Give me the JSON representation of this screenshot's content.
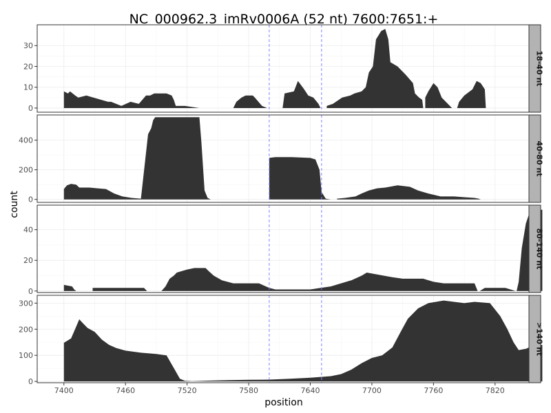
{
  "chart_data": {
    "type": "area",
    "title": "NC_000962.3_imRv0006A (52 nt) 7600:7651:+",
    "xlabel": "position",
    "ylabel": "count",
    "xlim": [
      7374,
      7853
    ],
    "x_ticks": [
      7400,
      7460,
      7520,
      7580,
      7640,
      7700,
      7760,
      7820
    ],
    "vlines": [
      7600,
      7651
    ],
    "colors": {
      "fill": "#333333",
      "vline": "#8080ff",
      "strip_bg": "#b3b3b3",
      "grid": "#ebebeb"
    },
    "panels": [
      {
        "label": "18-40 nt",
        "ylim": [
          -2,
          40
        ],
        "y_ticks": [
          0,
          10,
          20,
          30
        ],
        "segments": [
          [
            [
              7400,
              8
            ],
            [
              7404,
              7
            ],
            [
              7406,
              8
            ],
            [
              7411,
              6
            ],
            [
              7414,
              5
            ],
            [
              7422,
              6
            ],
            [
              7443,
              3
            ],
            [
              7446,
              3
            ],
            [
              7456,
              1
            ],
            [
              7465,
              3
            ],
            [
              7473,
              2
            ],
            [
              7480,
              6
            ],
            [
              7484,
              6
            ],
            [
              7488,
              7
            ],
            [
              7500,
              7
            ],
            [
              7505,
              6
            ],
            [
              7507,
              4
            ],
            [
              7509,
              1
            ],
            [
              7518,
              1
            ],
            [
              7532,
              0
            ],
            [
              7533,
              0
            ]
          ],
          [
            [
              7565,
              0
            ],
            [
              7568,
              3
            ],
            [
              7573,
              5
            ],
            [
              7577,
              6
            ],
            [
              7584,
              6
            ],
            [
              7586,
              5
            ],
            [
              7593,
              1
            ],
            [
              7598,
              0
            ]
          ],
          [
            [
              7613,
              0
            ],
            [
              7615,
              7
            ],
            [
              7624,
              8
            ],
            [
              7628,
              13
            ],
            [
              7634,
              9
            ],
            [
              7638,
              6
            ],
            [
              7643,
              5
            ],
            [
              7648,
              2
            ],
            [
              7650,
              0
            ]
          ],
          [
            [
              7656,
              1
            ],
            [
              7662,
              2
            ],
            [
              7671,
              5
            ],
            [
              7679,
              6
            ],
            [
              7683,
              7
            ],
            [
              7690,
              8
            ],
            [
              7694,
              10
            ],
            [
              7697,
              17
            ],
            [
              7701,
              20
            ],
            [
              7704,
              33
            ],
            [
              7709,
              37
            ],
            [
              7713,
              38
            ],
            [
              7716,
              33
            ],
            [
              7718,
              22
            ],
            [
              7725,
              20
            ],
            [
              7733,
              16
            ],
            [
              7740,
              12
            ],
            [
              7742,
              7
            ],
            [
              7746,
              5
            ],
            [
              7749,
              4
            ],
            [
              7750,
              0
            ]
          ],
          [
            [
              7752,
              5
            ],
            [
              7755,
              8
            ],
            [
              7760,
              12
            ],
            [
              7764,
              10
            ],
            [
              7768,
              5
            ],
            [
              7772,
              3
            ],
            [
              7776,
              1
            ],
            [
              7778,
              0
            ]
          ],
          [
            [
              7783,
              0
            ],
            [
              7785,
              3
            ],
            [
              7790,
              6
            ],
            [
              7798,
              9
            ],
            [
              7802,
              13
            ],
            [
              7806,
              12
            ],
            [
              7810,
              9
            ],
            [
              7811,
              0
            ]
          ]
        ]
      },
      {
        "label": "40-80 nt",
        "ylim": [
          -20,
          570
        ],
        "y_ticks": [
          0,
          200,
          400
        ],
        "segments": [
          [
            [
              7400,
              70
            ],
            [
              7403,
              95
            ],
            [
              7407,
              105
            ],
            [
              7412,
              100
            ],
            [
              7415,
              80
            ],
            [
              7425,
              80
            ],
            [
              7433,
              75
            ],
            [
              7441,
              70
            ],
            [
              7449,
              40
            ],
            [
              7457,
              20
            ],
            [
              7466,
              10
            ],
            [
              7475,
              5
            ],
            [
              7482,
              440
            ],
            [
              7485,
              480
            ],
            [
              7487,
              535
            ],
            [
              7489,
              555
            ],
            [
              7491,
              555
            ],
            [
              7523,
              555
            ],
            [
              7532,
              555
            ],
            [
              7534,
              380
            ],
            [
              7537,
              60
            ],
            [
              7540,
              10
            ],
            [
              7543,
              0
            ]
          ],
          [
            [
              7600,
              280
            ],
            [
              7606,
              285
            ],
            [
              7622,
              285
            ],
            [
              7640,
              280
            ],
            [
              7645,
              270
            ],
            [
              7649,
              200
            ],
            [
              7651,
              50
            ],
            [
              7655,
              5
            ],
            [
              7660,
              0
            ]
          ],
          [
            [
              7666,
              5
            ],
            [
              7674,
              10
            ],
            [
              7684,
              20
            ],
            [
              7690,
              40
            ],
            [
              7697,
              60
            ],
            [
              7705,
              75
            ],
            [
              7713,
              80
            ],
            [
              7725,
              95
            ],
            [
              7737,
              85
            ],
            [
              7745,
              60
            ],
            [
              7755,
              40
            ],
            [
              7761,
              30
            ],
            [
              7767,
              20
            ],
            [
              7780,
              20
            ],
            [
              7790,
              15
            ],
            [
              7800,
              10
            ],
            [
              7804,
              5
            ],
            [
              7806,
              0
            ]
          ]
        ]
      },
      {
        "label": "80-140 nt",
        "ylim": [
          -1,
          56
        ],
        "y_ticks": [
          0,
          20,
          40
        ],
        "segments": [
          [
            [
              7400,
              4
            ],
            [
              7408,
              3
            ],
            [
              7410,
              1
            ],
            [
              7412,
              0
            ]
          ],
          [
            [
              7428,
              2
            ],
            [
              7434,
              2
            ],
            [
              7450,
              2
            ],
            [
              7460,
              2
            ],
            [
              7478,
              2
            ],
            [
              7481,
              0
            ]
          ],
          [
            [
              7495,
              0
            ],
            [
              7499,
              3
            ],
            [
              7503,
              8
            ],
            [
              7507,
              10
            ],
            [
              7510,
              12
            ],
            [
              7515,
              13
            ],
            [
              7520,
              14
            ],
            [
              7527,
              15
            ],
            [
              7538,
              15
            ],
            [
              7541,
              13
            ],
            [
              7546,
              10
            ],
            [
              7554,
              7
            ],
            [
              7565,
              5
            ],
            [
              7590,
              5
            ],
            [
              7600,
              2
            ],
            [
              7606,
              1
            ],
            [
              7640,
              1
            ],
            [
              7650,
              2
            ],
            [
              7660,
              3
            ],
            [
              7670,
              5
            ],
            [
              7680,
              7
            ],
            [
              7690,
              10
            ],
            [
              7695,
              12
            ],
            [
              7720,
              9
            ],
            [
              7730,
              8
            ],
            [
              7750,
              8
            ],
            [
              7760,
              6
            ],
            [
              7770,
              5
            ],
            [
              7800,
              5
            ],
            [
              7803,
              0
            ]
          ],
          [
            [
              7805,
              0
            ],
            [
              7810,
              2
            ],
            [
              7830,
              2
            ],
            [
              7840,
              0
            ]
          ],
          [
            [
              7841,
              0
            ],
            [
              7843,
              6
            ],
            [
              7846,
              28
            ],
            [
              7850,
              44
            ],
            [
              7854,
              52
            ],
            [
              7858,
              53
            ],
            [
              7862,
              53
            ],
            [
              7866,
              53
            ]
          ]
        ]
      },
      {
        "label": ">140 nt",
        "ylim": [
          -5,
          330
        ],
        "y_ticks": [
          0,
          100,
          200,
          300
        ],
        "segments": [
          [
            [
              7400,
              148
            ],
            [
              7407,
              165
            ],
            [
              7412,
              210
            ],
            [
              7415,
              238
            ],
            [
              7418,
              225
            ],
            [
              7423,
              205
            ],
            [
              7430,
              190
            ],
            [
              7437,
              160
            ],
            [
              7444,
              140
            ],
            [
              7451,
              128
            ],
            [
              7460,
              118
            ],
            [
              7475,
              110
            ],
            [
              7490,
              105
            ],
            [
              7500,
              100
            ],
            [
              7508,
              45
            ],
            [
              7513,
              10
            ],
            [
              7518,
              2
            ],
            [
              7525,
              1
            ],
            [
              7540,
              3
            ],
            [
              7560,
              5
            ],
            [
              7580,
              6
            ],
            [
              7600,
              7
            ],
            [
              7620,
              10
            ],
            [
              7640,
              14
            ],
            [
              7660,
              20
            ],
            [
              7670,
              28
            ],
            [
              7680,
              45
            ],
            [
              7690,
              70
            ],
            [
              7700,
              90
            ],
            [
              7710,
              100
            ],
            [
              7720,
              130
            ],
            [
              7728,
              190
            ],
            [
              7735,
              240
            ],
            [
              7745,
              280
            ],
            [
              7755,
              300
            ],
            [
              7770,
              310
            ],
            [
              7790,
              300
            ],
            [
              7800,
              305
            ],
            [
              7815,
              300
            ],
            [
              7825,
              250
            ],
            [
              7832,
              200
            ],
            [
              7838,
              150
            ],
            [
              7843,
              120
            ],
            [
              7850,
              125
            ],
            [
              7856,
              135
            ],
            [
              7866,
              140
            ]
          ]
        ]
      }
    ]
  }
}
